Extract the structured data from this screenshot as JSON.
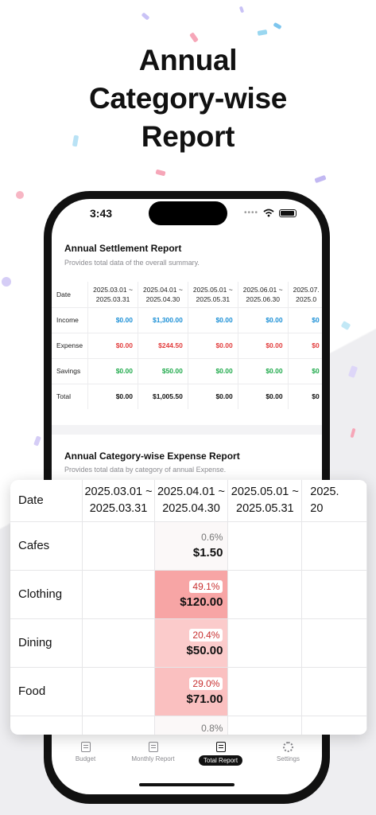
{
  "colors": {
    "accent_dark": "#111111",
    "income_blue": "#1a8fd6",
    "expense_red": "#e23b3b",
    "savings_green": "#1ea94a"
  },
  "headline": {
    "line1": "Annual",
    "line2": "Category-wise",
    "line3": "Report"
  },
  "status": {
    "time": "3:43",
    "dots": "••••"
  },
  "settlement": {
    "title": "Annual Settlement Report",
    "subtitle": "Provides total data of the overall summary.",
    "date_label": "Date",
    "periods": [
      {
        "a": "2025.03.01 ~",
        "b": "2025.03.31"
      },
      {
        "a": "2025.04.01 ~",
        "b": "2025.04.30"
      },
      {
        "a": "2025.05.01 ~",
        "b": "2025.05.31"
      },
      {
        "a": "2025.06.01 ~",
        "b": "2025.06.30"
      },
      {
        "a": "2025.07.",
        "b": "2025.0"
      }
    ],
    "rows": [
      {
        "label": "Income",
        "values": [
          "$0.00",
          "$1,300.00",
          "$0.00",
          "$0.00",
          "$0"
        ]
      },
      {
        "label": "Expense",
        "values": [
          "$0.00",
          "$244.50",
          "$0.00",
          "$0.00",
          "$0"
        ]
      },
      {
        "label": "Savings",
        "values": [
          "$0.00",
          "$50.00",
          "$0.00",
          "$0.00",
          "$0"
        ]
      },
      {
        "label": "Total",
        "values": [
          "$0.00",
          "$1,005.50",
          "$0.00",
          "$0.00",
          "$0"
        ]
      }
    ]
  },
  "expense_report": {
    "title": "Annual Category-wise Expense Report",
    "subtitle": "Provides total data by category of annual Expense.",
    "date_label": "Date",
    "periods": [
      {
        "a": "2025.03.01 ~",
        "b": "2025.03.31"
      },
      {
        "a": "2025.04.01 ~",
        "b": "2025.04.30"
      },
      {
        "a": "2025.05.01 ~",
        "b": "2025.05.31"
      },
      {
        "a": "2025.",
        "b": "20"
      }
    ],
    "rows": [
      {
        "label": "Cafes",
        "pct": "0.6%",
        "amount": "$1.50",
        "share": 0.006
      },
      {
        "label": "Clothing",
        "pct": "49.1%",
        "amount": "$120.00",
        "share": 0.491
      },
      {
        "label": "Dining",
        "pct": "20.4%",
        "amount": "$50.00",
        "share": 0.204
      },
      {
        "label": "Food",
        "pct": "29.0%",
        "amount": "$71.00",
        "share": 0.29
      },
      {
        "label": "",
        "pct": "0.8%",
        "amount": "",
        "share": 0.008
      }
    ]
  },
  "tabs": [
    {
      "label": "Budget",
      "icon": "document-icon"
    },
    {
      "label": "Monthly Report",
      "icon": "list-icon"
    },
    {
      "label": "Total Report",
      "icon": "chart-icon",
      "active": true
    },
    {
      "label": "Settings",
      "icon": "gear-icon"
    }
  ]
}
